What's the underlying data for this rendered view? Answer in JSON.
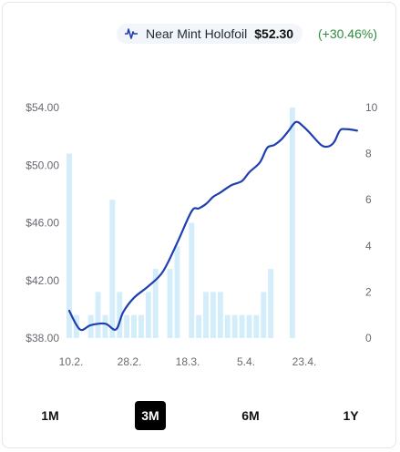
{
  "legend": {
    "series_name": "Near Mint Holofoil",
    "price": "$52.30",
    "change": "(+30.46%)",
    "icon": "line-chart-icon",
    "change_color": "#2e8b3e"
  },
  "range_tabs": [
    {
      "label": "1M",
      "active": false
    },
    {
      "label": "3M",
      "active": true
    },
    {
      "label": "6M",
      "active": false
    },
    {
      "label": "1Y",
      "active": false
    }
  ],
  "chart_data": {
    "type": "line",
    "price_axis": {
      "ticks": [
        "$54.00",
        "$50.00",
        "$46.00",
        "$42.00",
        "$38.00"
      ],
      "min": 38,
      "max": 54
    },
    "volume_axis": {
      "ticks": [
        "10",
        "8",
        "6",
        "4",
        "2",
        "0"
      ],
      "min": 0,
      "max": 10
    },
    "x_ticks": [
      "10.2.",
      "28.2.",
      "18.3.",
      "5.4.",
      "23.4."
    ],
    "line_color": "#1f3fb0",
    "bar_color": "#d3edfb",
    "price": [
      [
        0.0,
        39.9
      ],
      [
        1.5,
        38.6
      ],
      [
        3,
        38.9
      ],
      [
        5,
        39.0
      ],
      [
        6.5,
        38.6
      ],
      [
        7.5,
        39.8
      ],
      [
        9,
        40.8
      ],
      [
        11,
        41.6
      ],
      [
        13,
        42.6
      ],
      [
        15,
        44.6
      ],
      [
        17,
        46.8
      ],
      [
        18,
        47.0
      ],
      [
        19,
        47.3
      ],
      [
        20,
        47.8
      ],
      [
        21,
        48.1
      ],
      [
        22.5,
        48.6
      ],
      [
        24,
        48.9
      ],
      [
        25,
        49.5
      ],
      [
        26.5,
        50.2
      ],
      [
        27.5,
        51.2
      ],
      [
        28.5,
        51.4
      ],
      [
        29.5,
        51.8
      ],
      [
        30.5,
        52.4
      ],
      [
        31.5,
        53.0
      ],
      [
        32.5,
        52.7
      ],
      [
        33.5,
        52.2
      ],
      [
        35,
        51.4
      ],
      [
        36,
        51.3
      ],
      [
        36.8,
        51.6
      ],
      [
        37.6,
        52.4
      ],
      [
        38.4,
        52.5
      ],
      [
        40,
        52.4
      ]
    ],
    "volume": [
      [
        0,
        8
      ],
      [
        1,
        1
      ],
      [
        2,
        0
      ],
      [
        3,
        1
      ],
      [
        4,
        2
      ],
      [
        5,
        1
      ],
      [
        6,
        6
      ],
      [
        7,
        2
      ],
      [
        8,
        1
      ],
      [
        9,
        1
      ],
      [
        10,
        1
      ],
      [
        11,
        2
      ],
      [
        12,
        3
      ],
      [
        14,
        3
      ],
      [
        15,
        4
      ],
      [
        17,
        5
      ],
      [
        18,
        1
      ],
      [
        19,
        2
      ],
      [
        20,
        2
      ],
      [
        21,
        2
      ],
      [
        22,
        1
      ],
      [
        23,
        1
      ],
      [
        24,
        1
      ],
      [
        25,
        1
      ],
      [
        26,
        1
      ],
      [
        27,
        2
      ],
      [
        28,
        3
      ],
      [
        31,
        10
      ]
    ]
  }
}
